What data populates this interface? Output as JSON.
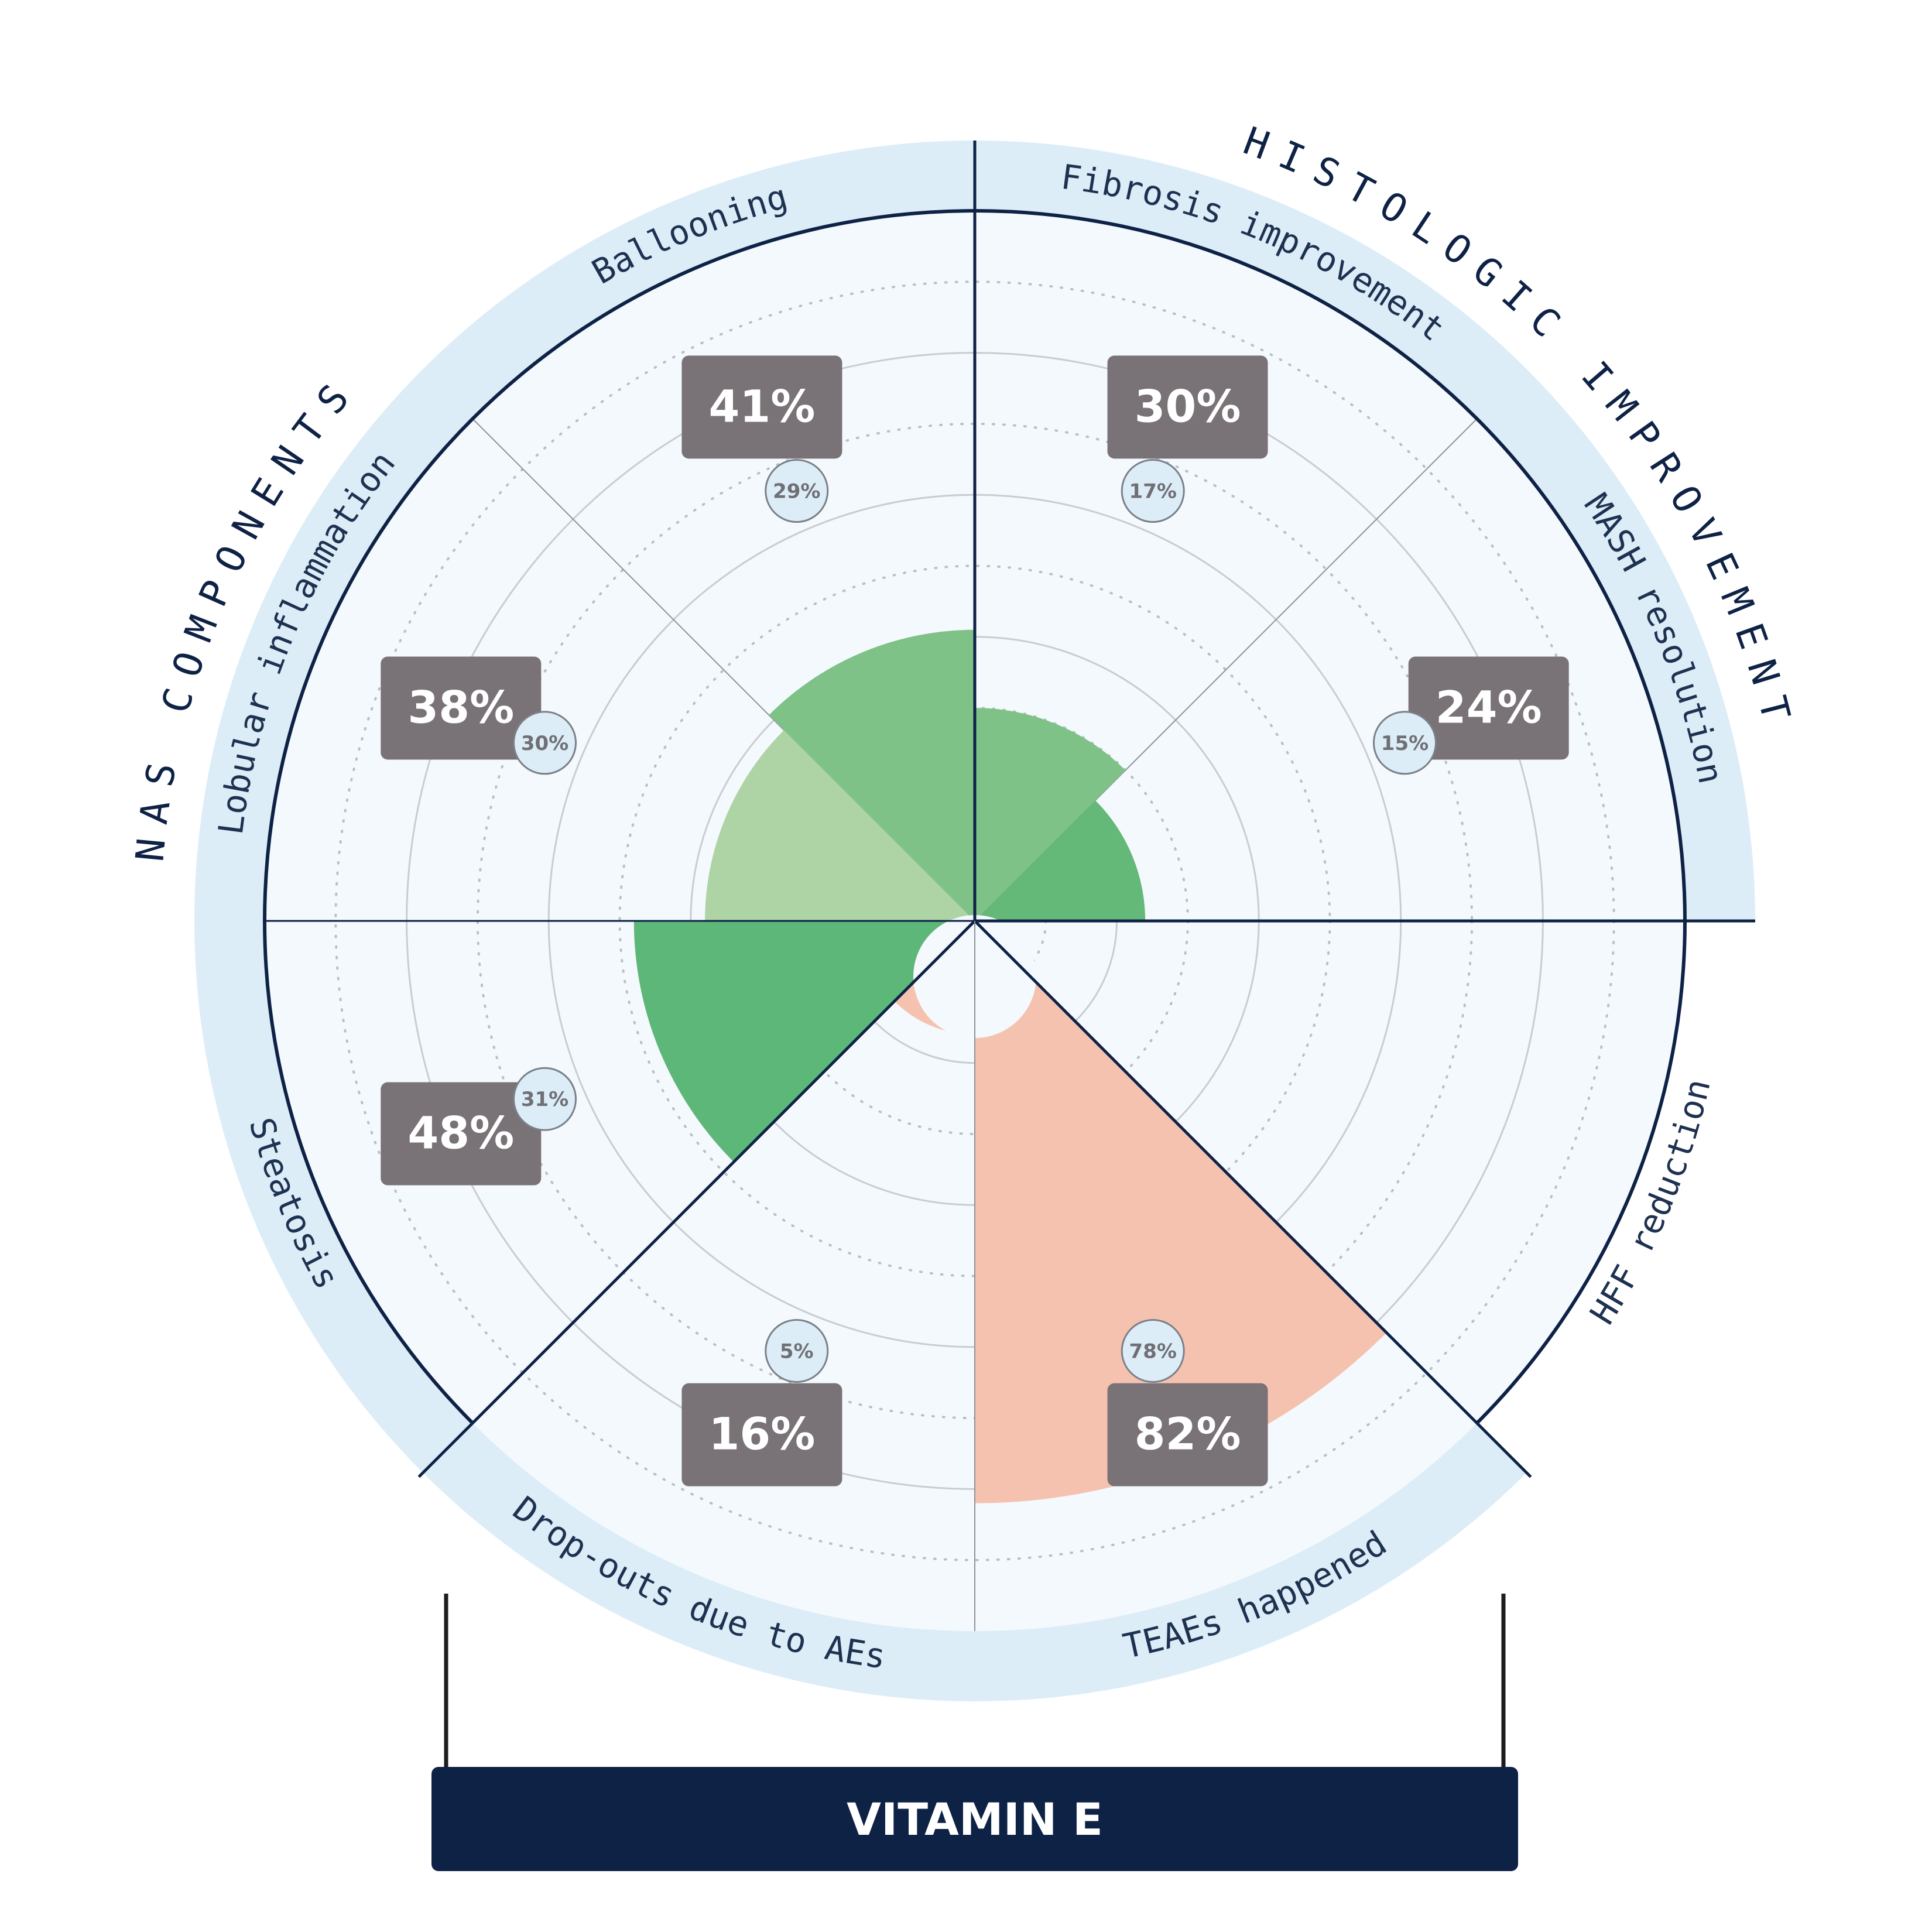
{
  "chart_data": {
    "type": "polar-bar",
    "title": "VITAMIN E",
    "groups": [
      {
        "label": "NAS COMPONENTS"
      },
      {
        "label": "HISTOLOGIC IMPROVEMENT"
      }
    ],
    "scale_max": 100,
    "gridline_step": 10,
    "categories": [
      {
        "label": "Fibrosis improvement",
        "value": 30,
        "comparator": 17,
        "value_label": "30%",
        "comparator_label": "17%",
        "color": "#7fc287"
      },
      {
        "label": "MASH resolution",
        "value": 24,
        "comparator": 15,
        "value_label": "24%",
        "comparator_label": "15%",
        "color": "#64b878"
      },
      {
        "label": "HFF reduction",
        "value": 0,
        "comparator": null,
        "value_label": "",
        "comparator_label": "",
        "color": "#64b878"
      },
      {
        "label": "TEAEs happened",
        "value": 82,
        "comparator": 78,
        "value_label": "82%",
        "comparator_label": "78%",
        "color": "#f5c2b0"
      },
      {
        "label": "Drop-outs due to AEs",
        "value": 16,
        "comparator": 5,
        "value_label": "16%",
        "comparator_label": "5%",
        "color": "#f5c2b0"
      },
      {
        "label": "Steatosis",
        "value": 48,
        "comparator": 31,
        "value_label": "48%",
        "comparator_label": "31%",
        "color": "#5db778"
      },
      {
        "label": "Lobular inflammation",
        "value": 38,
        "comparator": 30,
        "value_label": "38%",
        "comparator_label": "30%",
        "color": "#aed4a6"
      },
      {
        "label": "Ballooning",
        "value": 41,
        "comparator": 29,
        "value_label": "41%",
        "comparator_label": "29%",
        "color": "#7fc287"
      }
    ]
  },
  "colors": {
    "navy": "#0e2246",
    "ring": "#dcedf8",
    "plot_bg": "#f4f9fd",
    "label_box": "#797276"
  }
}
